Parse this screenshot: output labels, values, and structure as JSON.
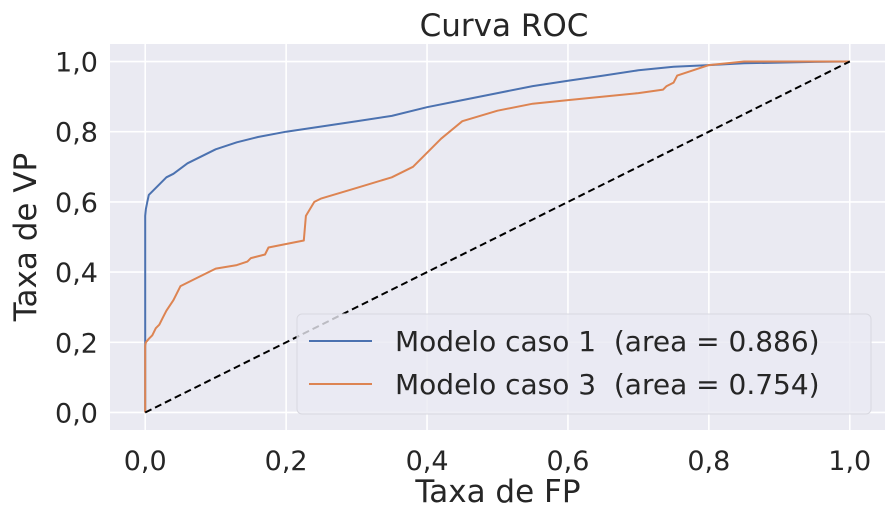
{
  "chart_data": {
    "type": "line",
    "title": "Curva ROC",
    "xlabel": "Taxa de FP",
    "ylabel": "Taxa de VP",
    "xlim": [
      -0.05,
      1.05
    ],
    "ylim": [
      -0.05,
      1.05
    ],
    "xticks": [
      0.0,
      0.2,
      0.4,
      0.6,
      0.8,
      1.0
    ],
    "yticks": [
      0.0,
      0.2,
      0.4,
      0.6,
      0.8,
      1.0
    ],
    "xtick_labels": [
      "0,0",
      "0,2",
      "0,4",
      "0,6",
      "0,8",
      "1,0"
    ],
    "ytick_labels": [
      "0,0",
      "0,2",
      "0,4",
      "0,6",
      "0,8",
      "1,0"
    ],
    "grid": true,
    "legend_position": "lower-right",
    "series": [
      {
        "name": "Modelo caso 1  (area = 0.886)",
        "color": "#4c72b0",
        "x": [
          0.0,
          0.0,
          0.001,
          0.003,
          0.005,
          0.01,
          0.02,
          0.03,
          0.04,
          0.06,
          0.08,
          0.1,
          0.13,
          0.16,
          0.2,
          0.25,
          0.3,
          0.35,
          0.4,
          0.45,
          0.5,
          0.55,
          0.6,
          0.65,
          0.7,
          0.75,
          0.8,
          0.85,
          0.9,
          0.95,
          1.0
        ],
        "y": [
          0.0,
          0.56,
          0.58,
          0.6,
          0.62,
          0.63,
          0.65,
          0.67,
          0.68,
          0.71,
          0.73,
          0.75,
          0.77,
          0.785,
          0.8,
          0.815,
          0.83,
          0.845,
          0.87,
          0.89,
          0.91,
          0.93,
          0.945,
          0.96,
          0.975,
          0.985,
          0.99,
          0.995,
          0.997,
          0.999,
          1.0
        ]
      },
      {
        "name": "Modelo caso 3  (area = 0.754)",
        "color": "#dd8452",
        "x": [
          0.0,
          0.0,
          0.001,
          0.005,
          0.01,
          0.015,
          0.02,
          0.025,
          0.03,
          0.04,
          0.05,
          0.07,
          0.1,
          0.13,
          0.145,
          0.15,
          0.17,
          0.175,
          0.2,
          0.225,
          0.228,
          0.24,
          0.25,
          0.3,
          0.35,
          0.38,
          0.4,
          0.42,
          0.45,
          0.5,
          0.55,
          0.6,
          0.65,
          0.7,
          0.735,
          0.74,
          0.75,
          0.755,
          0.8,
          0.85,
          1.0
        ],
        "y": [
          0.0,
          0.19,
          0.2,
          0.21,
          0.22,
          0.24,
          0.25,
          0.27,
          0.29,
          0.32,
          0.36,
          0.38,
          0.41,
          0.42,
          0.43,
          0.44,
          0.45,
          0.47,
          0.48,
          0.49,
          0.56,
          0.6,
          0.61,
          0.64,
          0.67,
          0.7,
          0.74,
          0.78,
          0.83,
          0.86,
          0.88,
          0.89,
          0.9,
          0.91,
          0.92,
          0.93,
          0.94,
          0.96,
          0.99,
          1.0,
          1.0
        ]
      },
      {
        "name": "",
        "color": "#000000",
        "dashed": true,
        "x": [
          0.0,
          1.0
        ],
        "y": [
          0.0,
          1.0
        ]
      }
    ]
  }
}
